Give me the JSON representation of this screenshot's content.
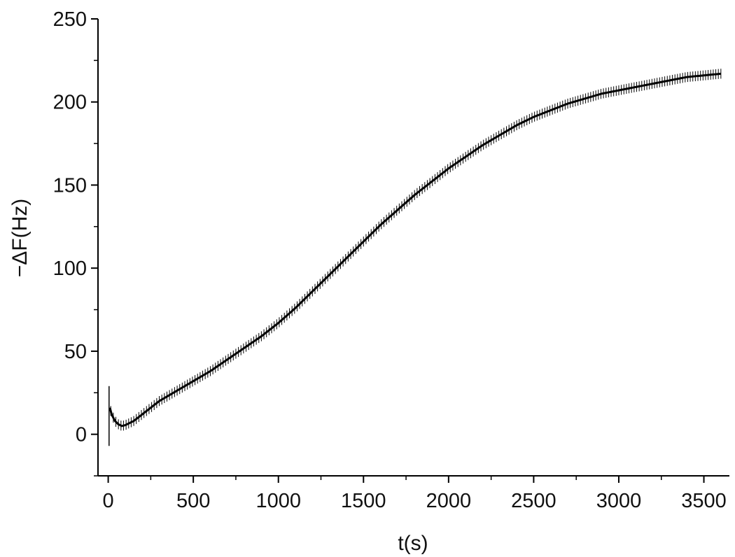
{
  "chart_data": {
    "type": "line",
    "xlabel": "t(s)",
    "ylabel": "−ΔF(Hz)",
    "xlim": [
      -60,
      3650
    ],
    "ylim": [
      -25,
      250
    ],
    "x_ticks": [
      0,
      500,
      1000,
      1500,
      2000,
      2500,
      3000,
      3500
    ],
    "x_tick_labels": [
      "0",
      "500",
      "1000",
      "1500",
      "2000",
      "2500",
      "3000",
      "3500"
    ],
    "y_ticks": [
      0,
      50,
      100,
      150,
      200,
      250
    ],
    "y_tick_labels": [
      "0",
      "50",
      "100",
      "150",
      "200",
      "250"
    ],
    "grid": false,
    "legend": false,
    "error_bars": true,
    "error_halfwidth": 3,
    "color": "#000000",
    "series": [
      {
        "x": [
          0,
          10,
          20,
          40,
          60,
          80,
          100,
          150,
          200,
          250,
          300,
          400,
          500,
          600,
          700,
          800,
          900,
          1000,
          1100,
          1200,
          1300,
          1400,
          1500,
          1600,
          1700,
          1800,
          1900,
          2000,
          2100,
          2200,
          2300,
          2400,
          2500,
          2600,
          2700,
          2800,
          2900,
          3000,
          3100,
          3200,
          3300,
          3400,
          3500,
          3600
        ],
        "y": [
          24,
          16,
          12,
          8,
          6,
          5,
          5.5,
          8,
          12,
          16,
          20,
          26,
          32,
          38,
          45,
          52,
          59,
          67,
          76,
          86,
          96,
          106,
          116,
          126,
          135,
          144,
          152,
          160,
          167,
          174,
          180,
          186,
          191,
          195,
          199,
          202,
          205,
          207,
          209,
          211,
          213,
          215,
          216,
          217
        ]
      }
    ],
    "initial_spike_y": [
      -7,
      29
    ]
  }
}
